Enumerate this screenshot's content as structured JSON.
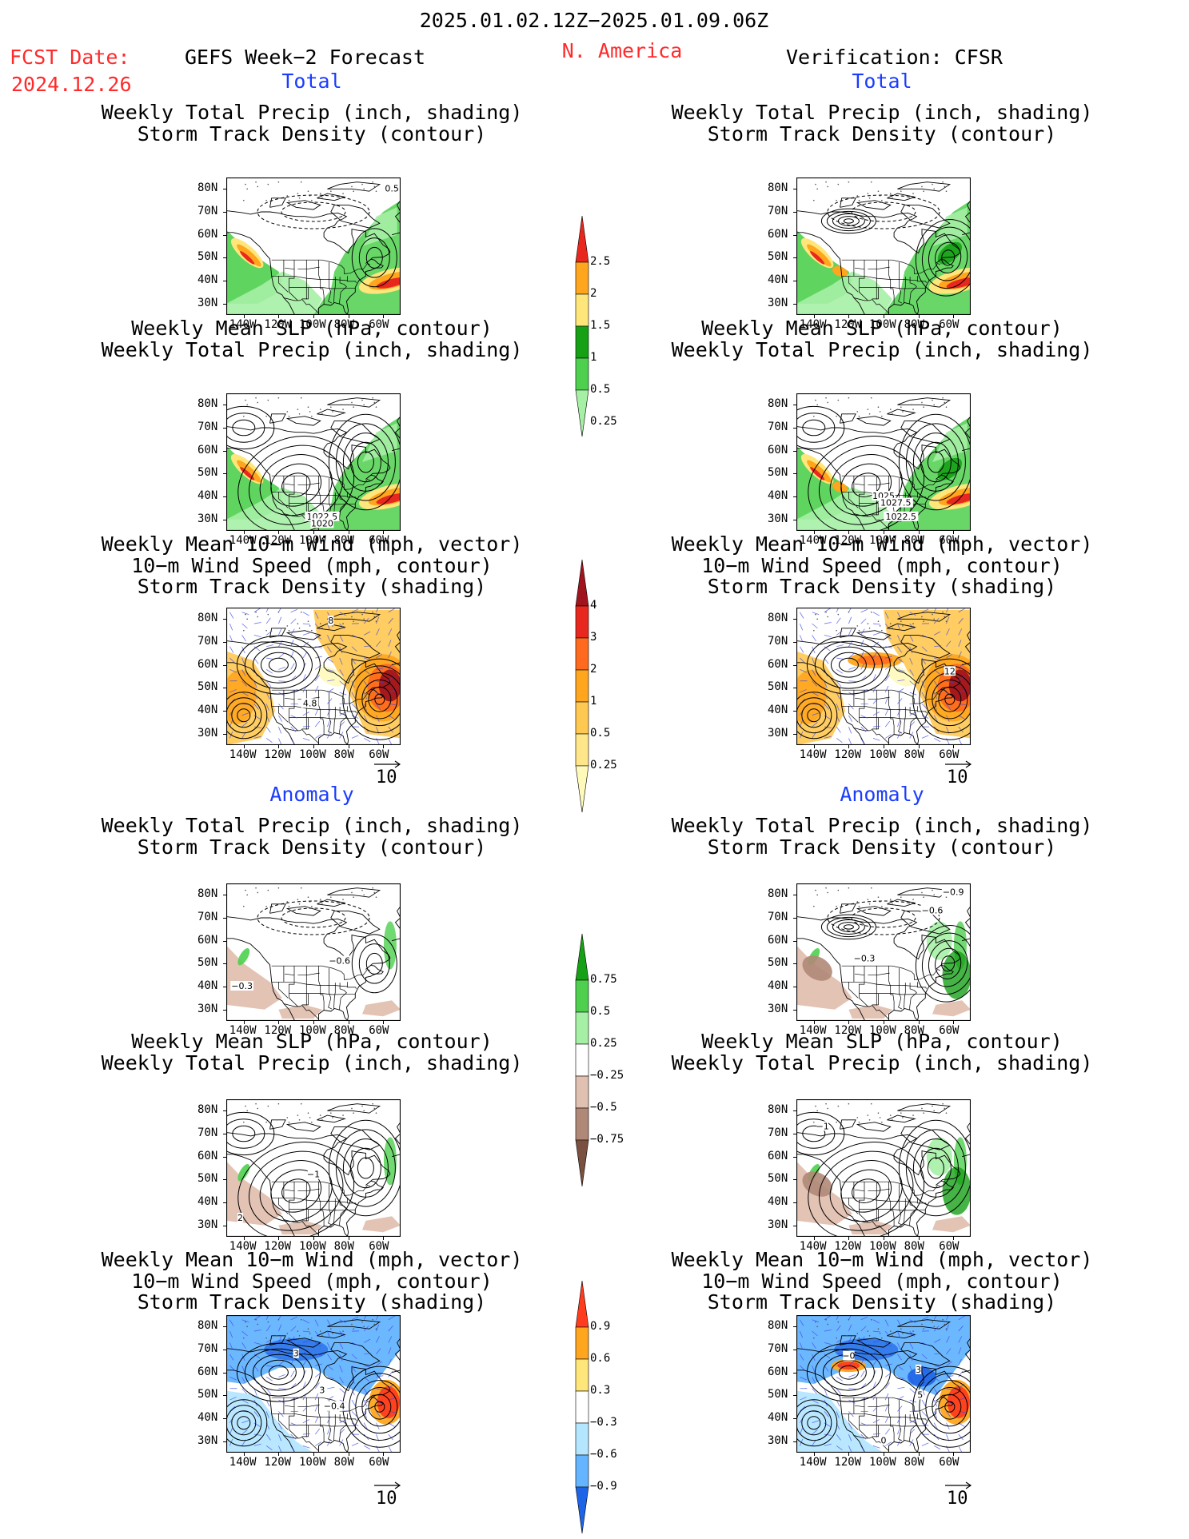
{
  "header": {
    "period": "2025.01.02.12Z−2025.01.09.06Z",
    "region": "N. America",
    "fcst_label": "FCST Date:",
    "fcst_date": "2024.12.26",
    "left_title": "GEFS Week−2 Forecast",
    "right_title": "Verification: CFSR"
  },
  "sections": {
    "total": "Total",
    "anomaly": "Anomaly"
  },
  "panel_titles": {
    "precip_std": [
      "Weekly Total Precip (inch, shading)",
      "Storm Track Density (contour)"
    ],
    "slp_precip": [
      "Weekly Mean SLP (hPa, contour)",
      "Weekly Total Precip (inch, shading)"
    ],
    "wind_std": [
      "Weekly Mean 10−m Wind (mph, vector)",
      "10−m Wind Speed (mph, contour)",
      "Storm Track Density (shading)"
    ]
  },
  "axes": {
    "lat_ticks": [
      "80N",
      "70N",
      "60N",
      "50N",
      "40N",
      "30N"
    ],
    "lon_ticks": [
      "140W",
      "120W",
      "100W",
      "80W",
      "60W"
    ]
  },
  "vector_ref": "10",
  "colorbars": {
    "precip_total": {
      "labels": [
        "2.5",
        "2",
        "1.5",
        "1",
        "0.5",
        "0.25"
      ],
      "colors": [
        "#e8281e",
        "#ffa51e",
        "#ffe67a",
        "#16a016",
        "#4ed04e",
        "#a6f0a6"
      ]
    },
    "std_total": {
      "labels": [
        "4",
        "3",
        "2",
        "1",
        "0.5",
        "0.25"
      ],
      "colors": [
        "#a0141e",
        "#e8281e",
        "#ff6a1e",
        "#ffa51e",
        "#ffc850",
        "#ffe68a",
        "#fffaba"
      ]
    },
    "precip_anom": {
      "labels": [
        "0.75",
        "0.5",
        "0.25",
        "−0.25",
        "−0.5",
        "−0.75"
      ],
      "colors": [
        "#16a016",
        "#4ed04e",
        "#a6f0a6",
        "#ffffff",
        "#e0c0b0",
        "#b08878",
        "#7a5040"
      ]
    },
    "std_anom": {
      "labels": [
        "0.9",
        "0.6",
        "0.3",
        "−0.3",
        "−0.6",
        "−0.9"
      ],
      "colors": [
        "#ff3c1e",
        "#ffa51e",
        "#ffe67a",
        "#ffffff",
        "#b4e6ff",
        "#64b4ff",
        "#1e64e6"
      ]
    }
  },
  "contour_labels": {
    "p1L": [
      "0.5"
    ],
    "p2L": [
      "1022.5",
      "1020"
    ],
    "p2R": [
      "1025",
      "1027.5",
      "1022.5"
    ],
    "p3L": [
      "8",
      "4.8"
    ],
    "p3R": [
      "12"
    ],
    "p4L": [
      "−0.6",
      "−0.3"
    ],
    "p4R": [
      "−0.9",
      "−0.6",
      "−0.3"
    ],
    "p5L": [
      "−1",
      "2"
    ],
    "p5R": [
      "−1"
    ],
    "p6L": [
      "3",
      "−0.4",
      "3"
    ],
    "p6R": [
      "−0",
      "3",
      "5",
      "0"
    ]
  }
}
